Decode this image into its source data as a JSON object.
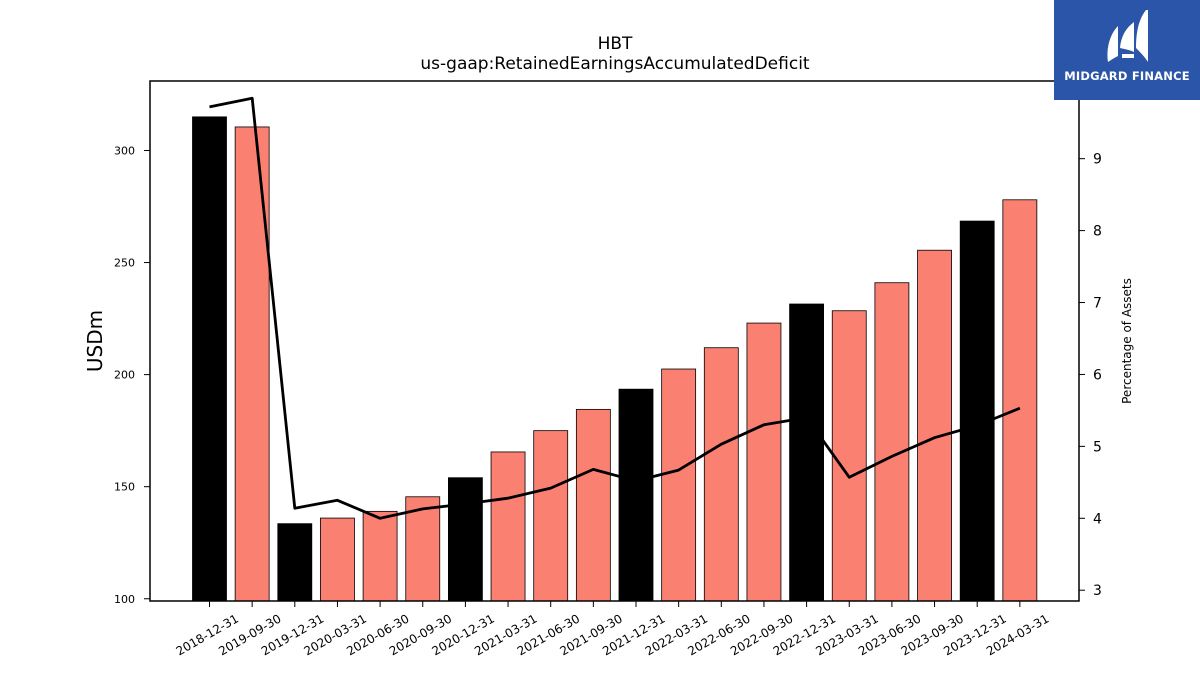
{
  "chart_data": {
    "type": "bar",
    "title": "HBT",
    "subtitle": "us-gaap:RetainedEarningsAccumulatedDeficit",
    "ylabel": "USDm",
    "y2label": "Percentage of Assets",
    "categories": [
      "2018-12-31",
      "2019-09-30",
      "2019-12-31",
      "2020-03-31",
      "2020-06-30",
      "2020-09-30",
      "2020-12-31",
      "2021-03-31",
      "2021-06-30",
      "2021-09-30",
      "2021-12-31",
      "2022-03-31",
      "2022-06-30",
      "2022-09-30",
      "2022-12-31",
      "2023-03-31",
      "2023-06-30",
      "2023-09-30",
      "2023-12-31",
      "2024-03-31"
    ],
    "series": [
      {
        "type": "bar",
        "values": [
          315.0,
          310.5,
          133.5,
          136.0,
          139.0,
          145.5,
          154.0,
          165.5,
          175.0,
          184.5,
          193.5,
          202.5,
          212.0,
          223.0,
          231.5,
          228.5,
          241.0,
          255.5,
          268.5,
          278.0
        ],
        "colors": [
          "#000000",
          "#fa8072",
          "#000000",
          "#fa8072",
          "#fa8072",
          "#fa8072",
          "#000000",
          "#fa8072",
          "#fa8072",
          "#fa8072",
          "#000000",
          "#fa8072",
          "#fa8072",
          "#fa8072",
          "#000000",
          "#fa8072",
          "#fa8072",
          "#fa8072",
          "#000000",
          "#fa8072"
        ]
      },
      {
        "type": "line",
        "axis": "right",
        "color": "#000000",
        "values": [
          9.72,
          9.84,
          4.14,
          4.25,
          4.0,
          4.13,
          4.2,
          4.28,
          4.42,
          4.68,
          4.52,
          4.67,
          5.03,
          5.3,
          5.4,
          4.57,
          4.86,
          5.12,
          5.29,
          5.53
        ]
      }
    ],
    "ylim": [
      99,
      331
    ],
    "yticks": [
      100,
      150,
      200,
      250,
      300
    ],
    "y2lim": [
      2.85,
      10.08
    ],
    "y2ticks": [
      3,
      4,
      5,
      6,
      7,
      8,
      9
    ],
    "grid": false,
    "legend": "none"
  },
  "logo": {
    "text": "MIDGARD FINANCE",
    "background": "#2b55a8"
  }
}
